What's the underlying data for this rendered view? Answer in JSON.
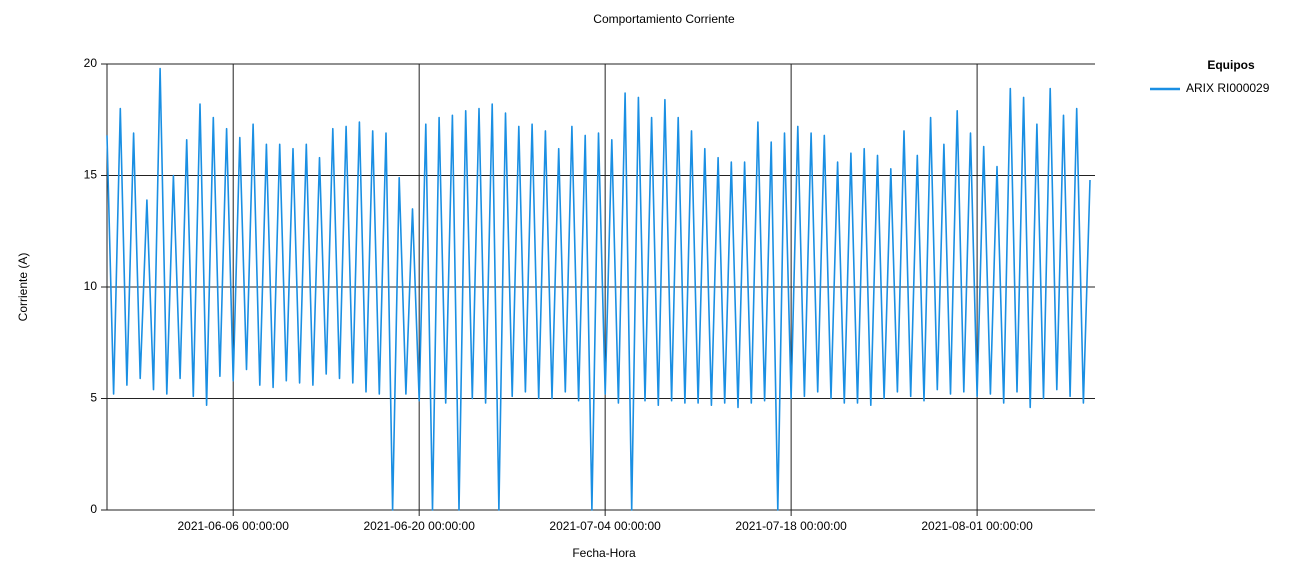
{
  "chart_data": {
    "type": "line",
    "title": "Comportamiento Corriente",
    "x_label": "Fecha-Hora",
    "y_label": "Corriente (A)",
    "legend_title": "Equipos",
    "legend": "top-right",
    "grid": true,
    "xlim": [
      "2021-05-27 12:00",
      "2021-08-09 21:00"
    ],
    "xticks": [
      "2021-06-06 00:00:00",
      "2021-06-20 00:00:00",
      "2021-07-04 00:00:00",
      "2021-07-18 00:00:00",
      "2021-08-01 00:00:00"
    ],
    "ylim": [
      0,
      20
    ],
    "yticks": [
      0,
      5,
      10,
      15,
      20
    ],
    "x": [
      "2021-05-27 12:00",
      "2021-05-28 00:00",
      "2021-05-28 12:00",
      "2021-05-29 00:00",
      "2021-05-29 12:00",
      "2021-05-30 00:00",
      "2021-05-30 12:00",
      "2021-05-31 00:00",
      "2021-05-31 12:00",
      "2021-06-01 00:00",
      "2021-06-01 12:00",
      "2021-06-02 00:00",
      "2021-06-02 12:00",
      "2021-06-03 00:00",
      "2021-06-03 12:00",
      "2021-06-04 00:00",
      "2021-06-04 12:00",
      "2021-06-05 00:00",
      "2021-06-05 12:00",
      "2021-06-06 00:00",
      "2021-06-06 12:00",
      "2021-06-07 00:00",
      "2021-06-07 12:00",
      "2021-06-08 00:00",
      "2021-06-08 12:00",
      "2021-06-09 00:00",
      "2021-06-09 12:00",
      "2021-06-10 00:00",
      "2021-06-10 12:00",
      "2021-06-11 00:00",
      "2021-06-11 12:00",
      "2021-06-12 00:00",
      "2021-06-12 12:00",
      "2021-06-13 00:00",
      "2021-06-13 12:00",
      "2021-06-14 00:00",
      "2021-06-14 12:00",
      "2021-06-15 00:00",
      "2021-06-15 12:00",
      "2021-06-16 00:00",
      "2021-06-16 12:00",
      "2021-06-17 00:00",
      "2021-06-17 12:00",
      "2021-06-18 00:00",
      "2021-06-18 12:00",
      "2021-06-19 00:00",
      "2021-06-19 12:00",
      "2021-06-20 00:00",
      "2021-06-20 12:00",
      "2021-06-21 00:00",
      "2021-06-21 12:00",
      "2021-06-22 00:00",
      "2021-06-22 12:00",
      "2021-06-23 00:00",
      "2021-06-23 12:00",
      "2021-06-24 00:00",
      "2021-06-24 12:00",
      "2021-06-25 00:00",
      "2021-06-25 12:00",
      "2021-06-26 00:00",
      "2021-06-26 12:00",
      "2021-06-27 00:00",
      "2021-06-27 12:00",
      "2021-06-28 00:00",
      "2021-06-28 12:00",
      "2021-06-29 00:00",
      "2021-06-29 12:00",
      "2021-06-30 00:00",
      "2021-06-30 12:00",
      "2021-07-01 00:00",
      "2021-07-01 12:00",
      "2021-07-02 00:00",
      "2021-07-02 12:00",
      "2021-07-03 00:00",
      "2021-07-03 12:00",
      "2021-07-04 00:00",
      "2021-07-04 12:00",
      "2021-07-05 00:00",
      "2021-07-05 12:00",
      "2021-07-06 00:00",
      "2021-07-06 12:00",
      "2021-07-07 00:00",
      "2021-07-07 12:00",
      "2021-07-08 00:00",
      "2021-07-08 12:00",
      "2021-07-09 00:00",
      "2021-07-09 12:00",
      "2021-07-10 00:00",
      "2021-07-10 12:00",
      "2021-07-11 00:00",
      "2021-07-11 12:00",
      "2021-07-12 00:00",
      "2021-07-12 12:00",
      "2021-07-13 00:00",
      "2021-07-13 12:00",
      "2021-07-14 00:00",
      "2021-07-14 12:00",
      "2021-07-15 00:00",
      "2021-07-15 12:00",
      "2021-07-16 00:00",
      "2021-07-16 12:00",
      "2021-07-17 00:00",
      "2021-07-17 12:00",
      "2021-07-18 00:00",
      "2021-07-18 12:00",
      "2021-07-19 00:00",
      "2021-07-19 12:00",
      "2021-07-20 00:00",
      "2021-07-20 12:00",
      "2021-07-21 00:00",
      "2021-07-21 12:00",
      "2021-07-22 00:00",
      "2021-07-22 12:00",
      "2021-07-23 00:00",
      "2021-07-23 12:00",
      "2021-07-24 00:00",
      "2021-07-24 12:00",
      "2021-07-25 00:00",
      "2021-07-25 12:00",
      "2021-07-26 00:00",
      "2021-07-26 12:00",
      "2021-07-27 00:00",
      "2021-07-27 12:00",
      "2021-07-28 00:00",
      "2021-07-28 12:00",
      "2021-07-29 00:00",
      "2021-07-29 12:00",
      "2021-07-30 00:00",
      "2021-07-30 12:00",
      "2021-07-31 00:00",
      "2021-07-31 12:00",
      "2021-08-01 00:00",
      "2021-08-01 12:00",
      "2021-08-02 00:00",
      "2021-08-02 12:00",
      "2021-08-03 00:00",
      "2021-08-03 12:00",
      "2021-08-04 00:00",
      "2021-08-04 12:00",
      "2021-08-05 00:00",
      "2021-08-05 12:00",
      "2021-08-06 00:00",
      "2021-08-06 12:00",
      "2021-08-07 00:00",
      "2021-08-07 12:00",
      "2021-08-08 00:00",
      "2021-08-08 12:00",
      "2021-08-09 00:00",
      "2021-08-09 12:00"
    ],
    "series": [
      {
        "name": "ARIX RI000029",
        "color": "#1a8fe3",
        "values": [
          16.8,
          5.2,
          18.0,
          5.6,
          16.9,
          5.9,
          13.9,
          5.4,
          19.8,
          5.2,
          15.0,
          5.9,
          16.6,
          5.1,
          18.2,
          4.7,
          17.6,
          6.0,
          17.1,
          5.8,
          16.7,
          6.3,
          17.3,
          5.6,
          16.4,
          5.5,
          16.4,
          5.8,
          16.2,
          5.7,
          16.4,
          5.6,
          15.8,
          6.1,
          17.1,
          5.9,
          17.2,
          5.7,
          17.4,
          5.3,
          17.0,
          5.2,
          16.9,
          0,
          14.9,
          5.2,
          13.5,
          4.9,
          17.3,
          0,
          17.6,
          4.8,
          17.7,
          0,
          17.9,
          5.0,
          18.0,
          4.8,
          18.2,
          0,
          17.8,
          5.1,
          17.2,
          5.3,
          17.3,
          5.0,
          17.0,
          5.0,
          16.2,
          5.3,
          17.2,
          4.9,
          16.8,
          0,
          16.9,
          5.2,
          16.6,
          4.8,
          18.7,
          0,
          18.5,
          4.9,
          17.6,
          4.7,
          18.4,
          4.9,
          17.6,
          4.8,
          17.0,
          4.8,
          16.2,
          4.7,
          15.8,
          4.8,
          15.6,
          4.6,
          15.6,
          4.8,
          17.4,
          4.9,
          16.5,
          0,
          16.9,
          5.0,
          17.2,
          5.1,
          16.9,
          5.3,
          16.8,
          5.0,
          15.6,
          4.8,
          16.0,
          4.8,
          16.2,
          4.7,
          15.9,
          5.0,
          15.3,
          5.3,
          17.0,
          5.1,
          15.9,
          4.9,
          17.6,
          5.4,
          16.4,
          5.2,
          17.9,
          5.3,
          16.9,
          5.1,
          16.3,
          5.2,
          15.4,
          4.8,
          18.9,
          5.3,
          18.5,
          4.6,
          17.3,
          5.0,
          18.9,
          5.4,
          17.7,
          5.1,
          18.0,
          4.8,
          14.8
        ]
      }
    ]
  }
}
